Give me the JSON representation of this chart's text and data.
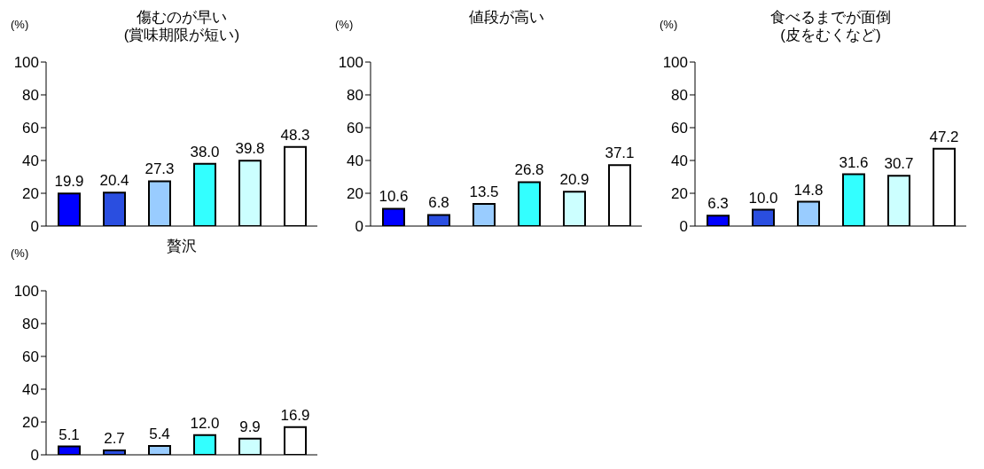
{
  "chart_data": [
    {
      "type": "bar",
      "title": "傷むのが早い",
      "subtitle": "(賞味期限が短い)",
      "ylabel": "(%)",
      "categories": [
        null,
        null,
        null,
        null,
        null,
        null
      ],
      "values": [
        19.9,
        20.4,
        27.3,
        38.0,
        39.8,
        48.3
      ],
      "value_labels": [
        "19.9",
        "20.4",
        "27.3",
        "38.0",
        "39.8",
        "48.3"
      ],
      "colors": [
        "#0000ff",
        "#2a4ee0",
        "#99ccff",
        "#33ffff",
        "#ccffff",
        "#ffffff"
      ],
      "ylim": [
        0,
        100
      ],
      "yticks": [
        0,
        20,
        40,
        60,
        80,
        100
      ]
    },
    {
      "type": "bar",
      "title": "値段が高い",
      "ylabel": "(%)",
      "categories": [
        null,
        null,
        null,
        null,
        null,
        null
      ],
      "values": [
        10.6,
        6.8,
        13.5,
        26.8,
        20.9,
        37.1
      ],
      "value_labels": [
        "10.6",
        "6.8",
        "13.5",
        "26.8",
        "20.9",
        "37.1"
      ],
      "colors": [
        "#0000ff",
        "#2a4ee0",
        "#99ccff",
        "#33ffff",
        "#ccffff",
        "#ffffff"
      ],
      "ylim": [
        0,
        100
      ],
      "yticks": [
        0,
        20,
        40,
        60,
        80,
        100
      ]
    },
    {
      "type": "bar",
      "title": "食べるまでが面倒",
      "subtitle": "(皮をむくなど)",
      "ylabel": "(%)",
      "categories": [
        null,
        null,
        null,
        null,
        null,
        null
      ],
      "values": [
        6.3,
        10.0,
        14.8,
        31.6,
        30.7,
        47.2
      ],
      "value_labels": [
        "6.3",
        "10.0",
        "14.8",
        "31.6",
        "30.7",
        "47.2"
      ],
      "colors": [
        "#0000ff",
        "#2a4ee0",
        "#99ccff",
        "#33ffff",
        "#ccffff",
        "#ffffff"
      ],
      "ylim": [
        0,
        100
      ],
      "yticks": [
        0,
        20,
        40,
        60,
        80,
        100
      ]
    },
    {
      "type": "bar",
      "title": "贅沢",
      "ylabel": "(%)",
      "categories": [
        null,
        null,
        null,
        null,
        null,
        null
      ],
      "values": [
        5.1,
        2.7,
        5.4,
        12.0,
        9.9,
        16.9
      ],
      "value_labels": [
        "5.1",
        "2.7",
        "5.4",
        "12.0",
        "9.9",
        "16.9"
      ],
      "colors": [
        "#0000ff",
        "#2a4ee0",
        "#99ccff",
        "#33ffff",
        "#ccffff",
        "#ffffff"
      ],
      "ylim": [
        0,
        100
      ],
      "yticks": [
        0,
        20,
        40,
        60,
        80,
        100
      ]
    }
  ]
}
